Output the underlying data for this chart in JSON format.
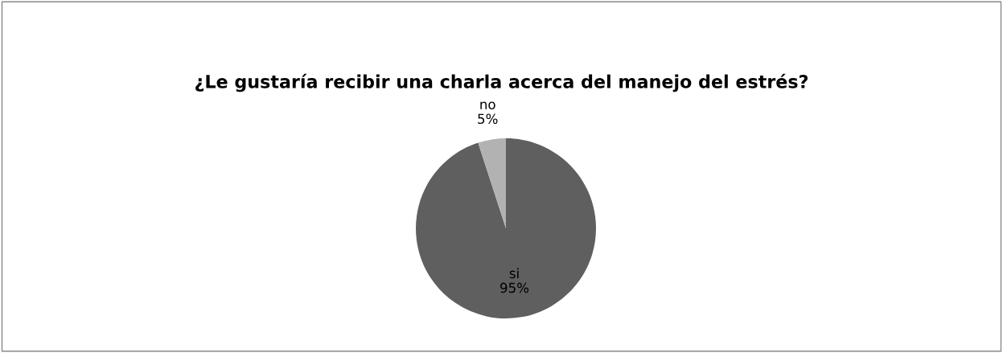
{
  "chart_data": {
    "type": "pie",
    "title": "¿Le gustaría recibir una charla acerca del manejo del estrés?",
    "categories": [
      "si",
      "no"
    ],
    "values": [
      95,
      5
    ],
    "colors": [
      "#5f5f5f",
      "#b2b2b2"
    ],
    "value_labels": [
      "95%",
      "5%"
    ],
    "legend": false
  }
}
